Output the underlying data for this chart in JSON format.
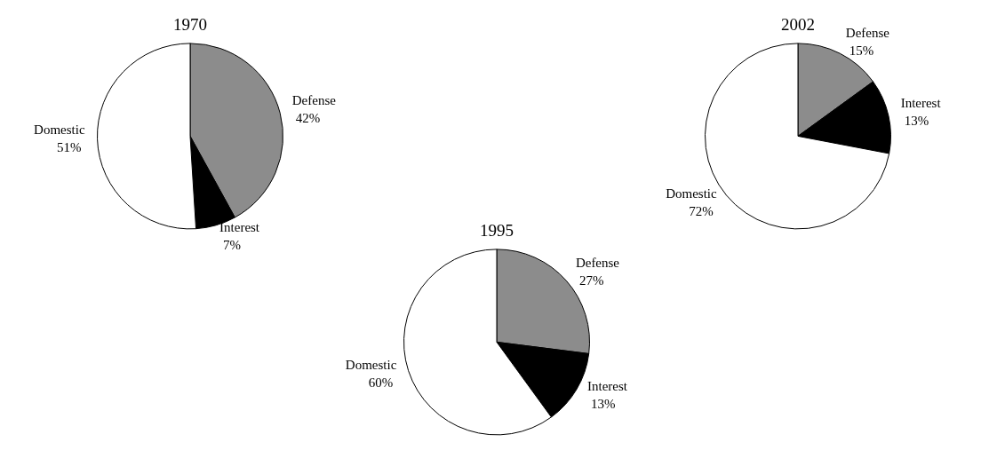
{
  "chart_data": [
    {
      "type": "pie",
      "title": "1970",
      "categories": [
        "Defense",
        "Interest",
        "Domestic"
      ],
      "values": [
        42,
        7,
        51
      ],
      "colors": [
        "#8c8c8c",
        "#000000",
        "#ffffff"
      ],
      "value_labels": [
        "42%",
        "7%",
        "51%"
      ]
    },
    {
      "type": "pie",
      "title": "1995",
      "categories": [
        "Defense",
        "Interest",
        "Domestic"
      ],
      "values": [
        27,
        13,
        60
      ],
      "colors": [
        "#8c8c8c",
        "#000000",
        "#ffffff"
      ],
      "value_labels": [
        "27%",
        "13%",
        "60%"
      ]
    },
    {
      "type": "pie",
      "title": "2002",
      "categories": [
        "Defense",
        "Interest",
        "Domestic"
      ],
      "values": [
        15,
        13,
        72
      ],
      "colors": [
        "#8c8c8c",
        "#000000",
        "#ffffff"
      ],
      "value_labels": [
        "15%",
        "13%",
        "72%"
      ]
    }
  ]
}
